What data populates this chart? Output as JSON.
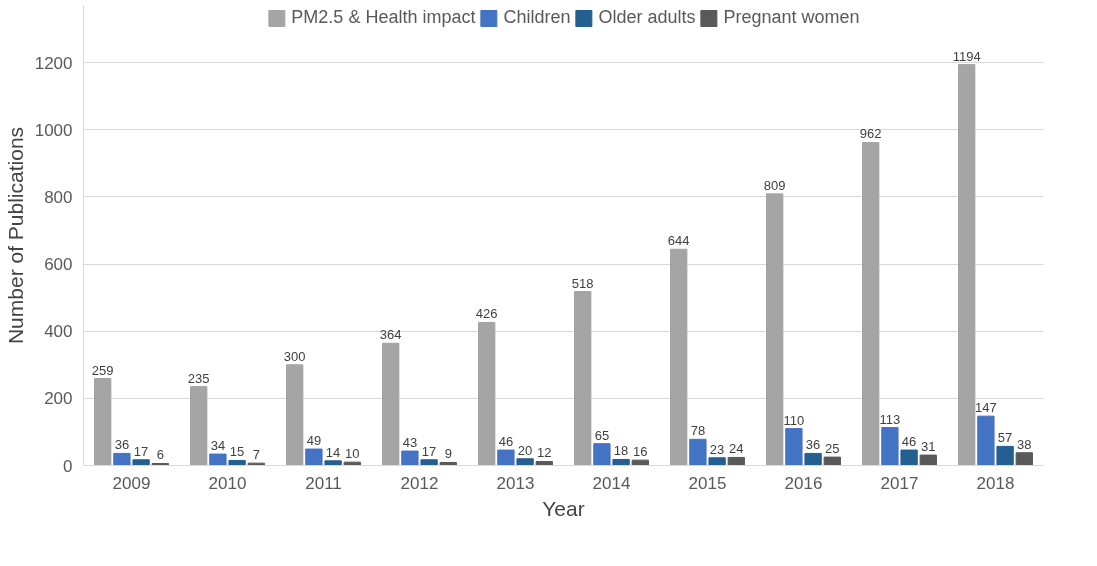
{
  "chart_data": {
    "type": "bar",
    "xlabel": "Year",
    "ylabel": "Number of Publications",
    "categories": [
      "2009",
      "2010",
      "2011",
      "2012",
      "2013",
      "2014",
      "2015",
      "2016",
      "2017",
      "2018"
    ],
    "series": [
      {
        "name": "PM2.5 & Health impact",
        "color": "#a5a5a5",
        "values": [
          259,
          235,
          300,
          364,
          426,
          518,
          644,
          809,
          962,
          1194
        ]
      },
      {
        "name": "Children",
        "color": "#4472c4",
        "values": [
          36,
          34,
          49,
          43,
          46,
          65,
          78,
          110,
          113,
          147
        ]
      },
      {
        "name": "Older adults",
        "color": "#255e91",
        "values": [
          17,
          15,
          14,
          17,
          20,
          18,
          23,
          36,
          46,
          57
        ]
      },
      {
        "name": "Pregnant women",
        "color": "#595959",
        "values": [
          6,
          7,
          10,
          9,
          12,
          16,
          24,
          25,
          31,
          38
        ]
      }
    ],
    "ylim": [
      0,
      1370
    ],
    "yticks": [
      0,
      200,
      400,
      600,
      800,
      1000,
      1200
    ],
    "grid": "y",
    "legend": "top",
    "data_labels": true
  }
}
